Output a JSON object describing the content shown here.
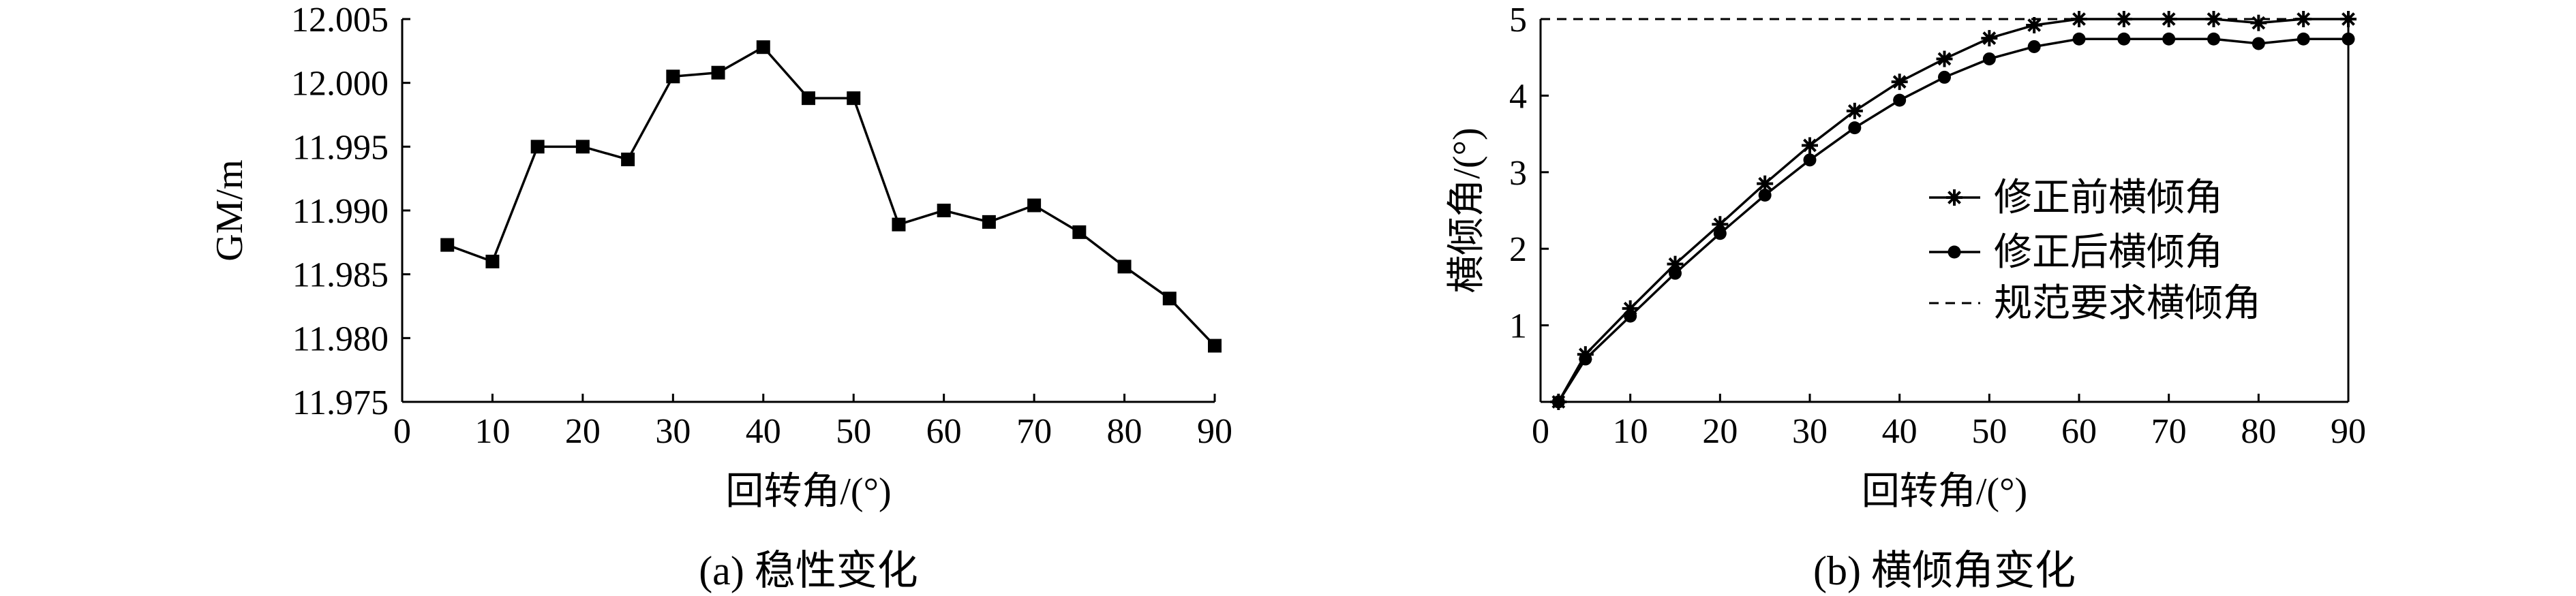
{
  "chart_data": [
    {
      "type": "line",
      "caption": "(a) 稳性变化",
      "xlabel": "回转角/(°)",
      "ylabel": "GM/m",
      "xlim": [
        0,
        90
      ],
      "ylim": [
        11.975,
        12.005
      ],
      "xticks": [
        0,
        10,
        20,
        30,
        40,
        50,
        60,
        70,
        80,
        90
      ],
      "yticks": [
        11.975,
        11.98,
        11.985,
        11.99,
        11.995,
        12.0,
        12.005
      ],
      "ytick_labels": [
        "11.975",
        "11.980",
        "11.985",
        "11.990",
        "11.995",
        "12.000",
        "12.005"
      ],
      "grid": false,
      "series": [
        {
          "marker": "square",
          "x": [
            5,
            10,
            15,
            20,
            25,
            30,
            35,
            40,
            45,
            50,
            55,
            60,
            65,
            70,
            75,
            80,
            85,
            90
          ],
          "y": [
            11.9873,
            11.986,
            11.995,
            11.995,
            11.994,
            12.0005,
            12.0008,
            12.0028,
            11.9988,
            11.9988,
            11.9889,
            11.99,
            11.9891,
            11.9904,
            11.9883,
            11.9856,
            11.9831,
            11.9794
          ]
        }
      ]
    },
    {
      "type": "line",
      "caption": "(b) 横倾角变化",
      "xlabel": "回转角/(°)",
      "ylabel": "横倾角/(°)",
      "xlim": [
        0,
        90
      ],
      "ylim": [
        0,
        5
      ],
      "xticks": [
        0,
        10,
        20,
        30,
        40,
        50,
        60,
        70,
        80,
        90
      ],
      "yticks": [
        1,
        2,
        3,
        4,
        5
      ],
      "grid": false,
      "legend_position": "center-right",
      "series": [
        {
          "name": "修正前横倾角",
          "marker": "star",
          "x": [
            2,
            5,
            10,
            15,
            20,
            25,
            30,
            35,
            40,
            45,
            50,
            55,
            60,
            65,
            70,
            75,
            80,
            85,
            90
          ],
          "y": [
            0,
            0.62,
            1.22,
            1.8,
            2.32,
            2.85,
            3.35,
            3.8,
            4.18,
            4.48,
            4.75,
            4.92,
            5.0,
            5.0,
            5.0,
            5.0,
            4.95,
            5.0,
            5.0
          ]
        },
        {
          "name": "修正后横倾角",
          "marker": "circle",
          "x": [
            2,
            5,
            10,
            15,
            20,
            25,
            30,
            35,
            40,
            45,
            50,
            55,
            60,
            65,
            70,
            75,
            80,
            85,
            90
          ],
          "y": [
            0,
            0.56,
            1.12,
            1.68,
            2.2,
            2.7,
            3.16,
            3.58,
            3.94,
            4.24,
            4.48,
            4.64,
            4.74,
            4.74,
            4.74,
            4.74,
            4.68,
            4.74,
            4.74
          ]
        },
        {
          "name": "规范要求横倾角",
          "style": "dashed",
          "x": [
            0,
            90
          ],
          "y": [
            5,
            5
          ]
        }
      ]
    }
  ]
}
